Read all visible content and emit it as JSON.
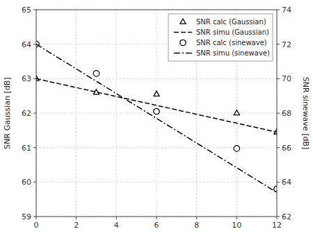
{
  "chart_data": {
    "type": "line",
    "ylabel": "SNR Gaussian [dB]",
    "y2label": "SNR sinewave [dB]",
    "xlim": [
      0,
      12
    ],
    "ylim": [
      59,
      65
    ],
    "y2lim": [
      62,
      74
    ],
    "xticks": [
      0,
      2,
      4,
      6,
      8,
      10,
      12
    ],
    "yticks": [
      59,
      60,
      61,
      62,
      63,
      64,
      65
    ],
    "y2ticks": [
      62,
      64,
      66,
      68,
      70,
      72,
      74
    ],
    "grid": true,
    "legend": "upper right",
    "series": [
      {
        "name": "SNR calc (Gaussian)",
        "type": "scatter",
        "marker": "triangle",
        "color": "#000000",
        "x": [
          0,
          3,
          6,
          10,
          12
        ],
        "values": [
          63.0,
          62.6,
          62.55,
          62.0,
          61.45
        ]
      },
      {
        "name": "SNR simu (Gaussian)",
        "type": "line",
        "line_style": "dashed",
        "color": "#000000",
        "x": [
          0,
          12
        ],
        "values": [
          63.0,
          61.45
        ]
      },
      {
        "name": "SNR calc (sinewave)",
        "type": "scatter",
        "marker": "circle",
        "color": "#000000",
        "axis": "y2",
        "x": [
          0,
          3,
          6,
          10,
          12
        ],
        "values": [
          72.0,
          70.3,
          68.1,
          65.95,
          63.6
        ]
      },
      {
        "name": "SNR simu (sinewave)",
        "type": "line",
        "line_style": "dashdot",
        "color": "#000000",
        "axis": "y2",
        "x": [
          0,
          12
        ],
        "values": [
          72.0,
          63.4
        ]
      }
    ]
  }
}
